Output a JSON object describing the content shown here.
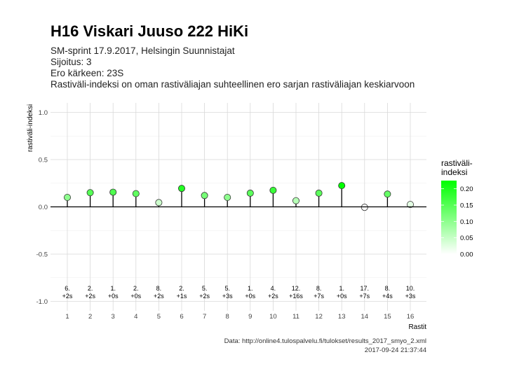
{
  "header": {
    "title": "H16 Viskari Juuso 222 HiKi",
    "subtitle_lines": [
      "SM-sprint 17.9.2017, Helsingin Suunnistajat",
      "Sijoitus: 3",
      "Ero kärkeen: 23S",
      "Rastiväli-indeksi on oman rastiväliajan suhteellinen ero sarjan rastiväliajan keskiarvoon"
    ]
  },
  "caption": {
    "source": "Data: http://online4.tulospalvelu.fi/tulokset/results_2017_smyo_2.xml",
    "timestamp": "2017-09-24 21:37:44"
  },
  "chart_data": {
    "type": "lollipop",
    "xlabel": "Rastit",
    "ylabel": "rastiväli-indeksi",
    "ylim": [
      -1.1,
      1.1
    ],
    "yticks": [
      -1.0,
      -0.5,
      0.0,
      0.5,
      1.0
    ],
    "ytick_labels": [
      "-1.0",
      "-0.5",
      "0.0",
      "0.5",
      "1.0"
    ],
    "x": [
      1,
      2,
      3,
      4,
      5,
      6,
      7,
      8,
      9,
      10,
      11,
      12,
      13,
      14,
      15,
      16
    ],
    "values": [
      0.1,
      0.15,
      0.155,
      0.14,
      0.045,
      0.195,
      0.12,
      0.1,
      0.145,
      0.175,
      0.065,
      0.145,
      0.225,
      -0.005,
      0.135,
      0.025
    ],
    "split_rank": [
      "6.",
      "2.",
      "1.",
      "2.",
      "8.",
      "2.",
      "5.",
      "5.",
      "1.",
      "4.",
      "12.",
      "8.",
      "1.",
      "17.",
      "8.",
      "10."
    ],
    "split_diff": [
      "+2s",
      "+2s",
      "+0s",
      "+0s",
      "+2s",
      "+1s",
      "+2s",
      "+3s",
      "+0s",
      "+2s",
      "+16s",
      "+7s",
      "+0s",
      "+7s",
      "+4s",
      "+3s"
    ],
    "legend": {
      "title_lines": [
        "rastiväli-",
        "indeksi"
      ],
      "position": "right",
      "ticks": [
        0.0,
        0.05,
        0.1,
        0.15,
        0.2
      ],
      "tick_labels": [
        "0.00",
        "0.05",
        "0.10",
        "0.15",
        "0.20"
      ],
      "range": [
        0,
        0.225
      ]
    },
    "colors": {
      "low": "#ffffff",
      "high": "#00ff00",
      "grid_major": "#d9d9d9",
      "grid_minor": "#ececec",
      "stem": "#000000",
      "point_stroke": "#333333"
    },
    "grid": true
  }
}
